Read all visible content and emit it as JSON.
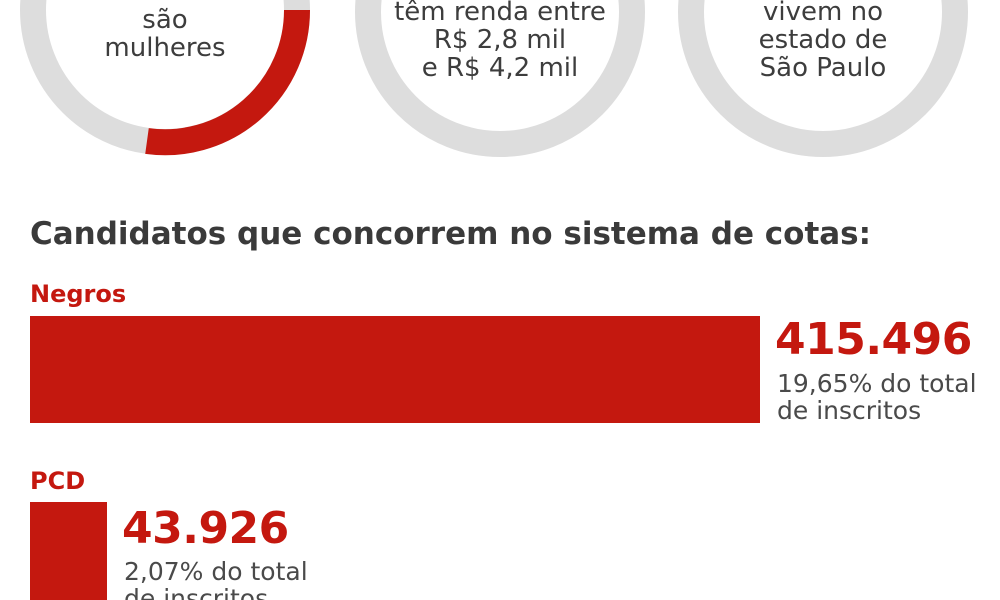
{
  "colors": {
    "accent": "#c4180f",
    "track": "#dddddd",
    "text": "#3a3a3a"
  },
  "donuts": [
    {
      "lines": [
        "são",
        "mulheres"
      ]
    },
    {
      "lines": [
        "têm renda entre",
        "R$ 2,8 mil",
        "e R$ 4,2 mil"
      ]
    },
    {
      "lines": [
        "vivem no",
        "estado de",
        "São Paulo"
      ]
    }
  ],
  "chart_data": {
    "type": "bar",
    "title": "Candidatos que concorrem no sistema de cotas:",
    "categories": [
      "Negros",
      "PCD"
    ],
    "values": [
      415496,
      43926
    ],
    "values_label": [
      "415.496",
      "43.926"
    ],
    "percent_label": [
      "19,65% do total",
      "2,07% do total"
    ],
    "percent_label_suffix": "de inscritos",
    "percent": [
      19.65,
      2.07
    ]
  }
}
